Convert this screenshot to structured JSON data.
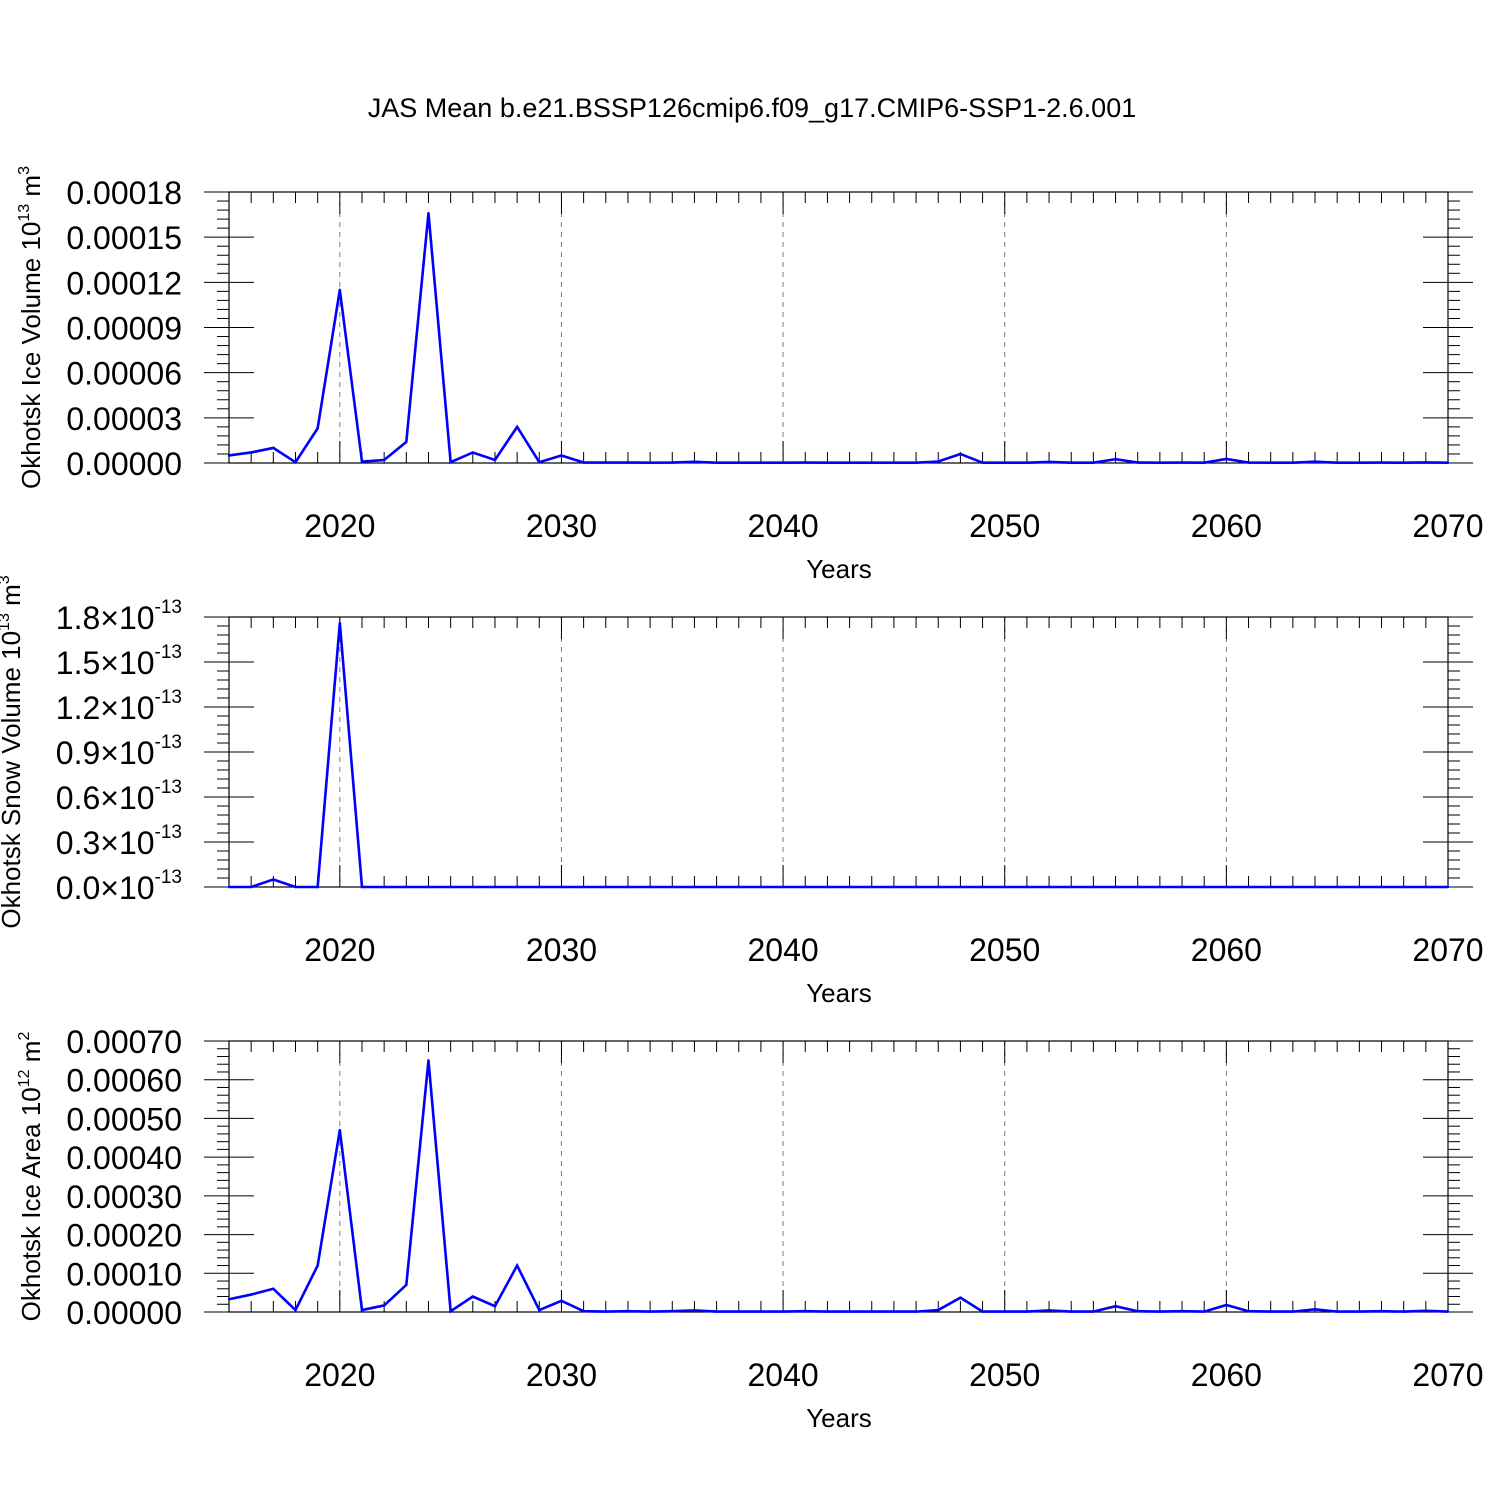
{
  "title": "JAS Mean b.e21.BSSP126cmip6.f09_g17.CMIP6-SSP1-2.6.001",
  "colors": {
    "line": "#0000ff",
    "axis": "#000000",
    "grid": "#808080"
  },
  "chart_data": [
    {
      "type": "line",
      "ylabel": "Okhotsk Ice Volume 10",
      "ylabel_exp": "13",
      "ylabel_unit": " m",
      "ylabel_unit_exp": "3",
      "xlabel": "Years",
      "xlim": [
        2015,
        2070
      ],
      "ylim": [
        0,
        0.00018
      ],
      "xticks": [
        2020,
        2030,
        2040,
        2050,
        2060,
        2070
      ],
      "xtick_labels": [
        "2020",
        "2030",
        "2040",
        "2050",
        "2060",
        "2070"
      ],
      "yticks": [
        0,
        3e-05,
        6e-05,
        9e-05,
        0.00012,
        0.00015,
        0.00018
      ],
      "ytick_labels": [
        "0.00000",
        "0.00003",
        "0.00006",
        "0.00009",
        "0.00012",
        "0.00015",
        "0.00018"
      ],
      "grid": "vertical dashed at major x ticks",
      "series": [
        {
          "x": [
            2015,
            2016,
            2017,
            2018,
            2019,
            2020,
            2021,
            2022,
            2023,
            2024,
            2025,
            2026,
            2027,
            2028,
            2029,
            2030,
            2031,
            2032,
            2033,
            2034,
            2035,
            2036,
            2037,
            2038,
            2039,
            2040,
            2041,
            2042,
            2043,
            2044,
            2045,
            2046,
            2047,
            2048,
            2049,
            2050,
            2051,
            2052,
            2053,
            2054,
            2055,
            2056,
            2057,
            2058,
            2059,
            2060,
            2061,
            2062,
            2063,
            2064,
            2065,
            2066,
            2067,
            2068,
            2069,
            2070
          ],
          "values": [
            5e-06,
            7e-06,
            1e-05,
            5e-07,
            2.3e-05,
            0.000115,
            1e-06,
            2e-06,
            1.4e-05,
            0.000166,
            5e-07,
            7e-06,
            2e-06,
            2.4e-05,
            5e-07,
            5e-06,
            3e-07,
            3e-07,
            3e-07,
            2e-07,
            3e-07,
            8e-07,
            2e-07,
            2e-07,
            2e-07,
            2e-07,
            3e-07,
            2e-07,
            2e-07,
            2e-07,
            2e-07,
            2e-07,
            1e-06,
            6e-06,
            2e-07,
            2e-07,
            2e-07,
            7e-07,
            2e-07,
            2e-07,
            2.5e-06,
            3e-07,
            2e-07,
            3e-07,
            2e-07,
            2.7e-06,
            3e-07,
            2e-07,
            2e-07,
            9e-07,
            2e-07,
            2e-07,
            3e-07,
            2e-07,
            4e-07,
            2e-07
          ]
        }
      ]
    },
    {
      "type": "line",
      "ylabel": "Okhotsk Snow Volume 10",
      "ylabel_exp": "13",
      "ylabel_unit": " m",
      "ylabel_unit_exp": "3",
      "xlabel": "Years",
      "xlim": [
        2015,
        2070
      ],
      "ylim": [
        0,
        1.8e-13
      ],
      "xticks": [
        2020,
        2030,
        2040,
        2050,
        2060,
        2070
      ],
      "xtick_labels": [
        "2020",
        "2030",
        "2040",
        "2050",
        "2060",
        "2070"
      ],
      "yticks": [
        0,
        3e-14,
        6e-14,
        9e-14,
        1.2e-13,
        1.5e-13,
        1.8e-13
      ],
      "ytick_mantissas": [
        "0.0",
        "0.3",
        "0.6",
        "0.9",
        "1.2",
        "1.5",
        "1.8"
      ],
      "ytick_times": "×10",
      "ytick_exp": "-13",
      "grid": "vertical dashed at major x ticks",
      "series": [
        {
          "x": [
            2015,
            2016,
            2017,
            2018,
            2019,
            2020,
            2021,
            2022,
            2023,
            2024,
            2025,
            2026,
            2027,
            2028,
            2029,
            2030,
            2031,
            2032,
            2033,
            2034,
            2035,
            2036,
            2037,
            2038,
            2039,
            2040,
            2041,
            2042,
            2043,
            2044,
            2045,
            2046,
            2047,
            2048,
            2049,
            2050,
            2051,
            2052,
            2053,
            2054,
            2055,
            2056,
            2057,
            2058,
            2059,
            2060,
            2061,
            2062,
            2063,
            2064,
            2065,
            2066,
            2067,
            2068,
            2069,
            2070
          ],
          "values": [
            0,
            0,
            5e-15,
            0,
            0,
            1.76e-13,
            0,
            0,
            0,
            0,
            0,
            0,
            0,
            0,
            0,
            0,
            0,
            0,
            0,
            0,
            0,
            0,
            0,
            0,
            0,
            0,
            0,
            0,
            0,
            0,
            0,
            0,
            0,
            0,
            0,
            0,
            0,
            0,
            0,
            0,
            0,
            0,
            0,
            0,
            0,
            0,
            0,
            0,
            0,
            0,
            0,
            0,
            0,
            0,
            0,
            0
          ]
        }
      ]
    },
    {
      "type": "line",
      "ylabel": "Okhotsk Ice Area 10",
      "ylabel_exp": "12",
      "ylabel_unit": " m",
      "ylabel_unit_exp": "2",
      "xlabel": "Years",
      "xlim": [
        2015,
        2070
      ],
      "ylim": [
        0,
        0.0007
      ],
      "xticks": [
        2020,
        2030,
        2040,
        2050,
        2060,
        2070
      ],
      "xtick_labels": [
        "2020",
        "2030",
        "2040",
        "2050",
        "2060",
        "2070"
      ],
      "yticks": [
        0,
        0.0001,
        0.0002,
        0.0003,
        0.0004,
        0.0005,
        0.0006,
        0.0007
      ],
      "ytick_labels": [
        "0.00000",
        "0.00010",
        "0.00020",
        "0.00030",
        "0.00040",
        "0.00050",
        "0.00060",
        "0.00070"
      ],
      "grid": "vertical dashed at major x ticks",
      "series": [
        {
          "x": [
            2015,
            2016,
            2017,
            2018,
            2019,
            2020,
            2021,
            2022,
            2023,
            2024,
            2025,
            2026,
            2027,
            2028,
            2029,
            2030,
            2031,
            2032,
            2033,
            2034,
            2035,
            2036,
            2037,
            2038,
            2039,
            2040,
            2041,
            2042,
            2043,
            2044,
            2045,
            2046,
            2047,
            2048,
            2049,
            2050,
            2051,
            2052,
            2053,
            2054,
            2055,
            2056,
            2057,
            2058,
            2059,
            2060,
            2061,
            2062,
            2063,
            2064,
            2065,
            2066,
            2067,
            2068,
            2069,
            2070
          ],
          "values": [
            3.3e-05,
            4.5e-05,
            6e-05,
            5e-06,
            0.00012,
            0.00047,
            5e-06,
            1.7e-05,
            7e-05,
            0.00065,
            2e-06,
            4e-05,
            1.5e-05,
            0.00012,
            5e-06,
            2.9e-05,
            2e-06,
            1e-06,
            2e-06,
            1e-06,
            2e-06,
            4e-06,
            1e-06,
            1e-06,
            1e-06,
            1e-06,
            2e-06,
            1e-06,
            1e-06,
            1e-06,
            1e-06,
            1e-06,
            5e-06,
            3.7e-05,
            1e-06,
            1e-06,
            1e-06,
            4e-06,
            1e-06,
            1e-06,
            1.5e-05,
            2e-06,
            1e-06,
            2e-06,
            1e-06,
            1.8e-05,
            2e-06,
            1e-06,
            1e-06,
            7e-06,
            1e-06,
            1e-06,
            2e-06,
            1e-06,
            3e-06,
            1e-06
          ]
        }
      ]
    }
  ]
}
